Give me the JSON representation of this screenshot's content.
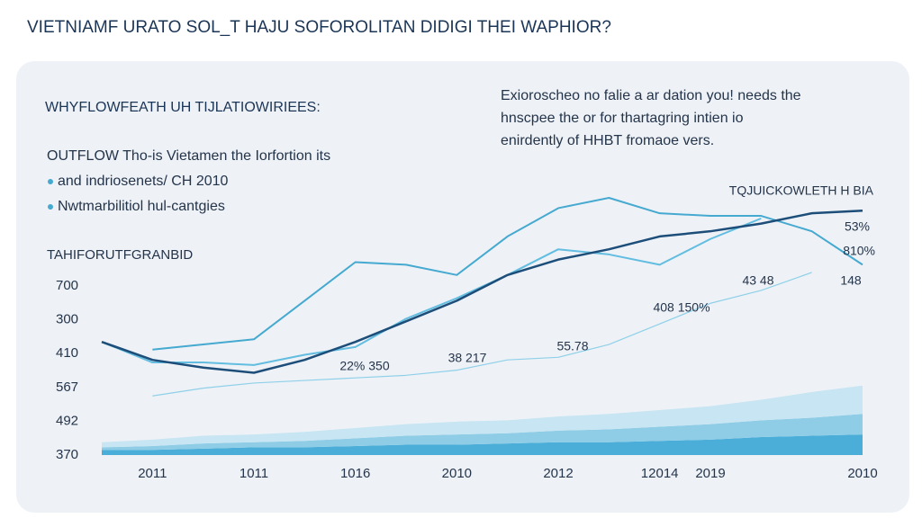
{
  "header": {
    "title": "VIETNIAMF URATO SOL_T HAJU SOFOROLITAN DIDIGI THEI WAPHIOR?"
  },
  "panel": {
    "heading": "WHYFLOWFEATH UH TIJLATIOWIRIEES:",
    "description": [
      "Exioroscheо no falie a ar dation you! needs the",
      "hnscpee the or for thartagring intien io",
      "enirdently of HHBT fromaoe vers."
    ],
    "intro": "OUTFLOW Tho-is Vietamen the Iorfortion its",
    "bullets": [
      "and indriosenets/ CH 2010",
      "Nwtmarbilitiol hul-cantgies"
    ],
    "axis_title": "TAHIFORUTFGRANBID"
  },
  "chart_data": {
    "type": "line",
    "categories": [
      null,
      "2011",
      null,
      "1011",
      null,
      "1016",
      null,
      "2010",
      null,
      "2012",
      null,
      "12014",
      "2019",
      null,
      null,
      "2010"
    ],
    "y_labels": [
      "700",
      "300",
      "410",
      "567",
      "492",
      "370"
    ],
    "ylim": [
      0,
      100
    ],
    "series": [
      {
        "kind": "area",
        "color": "#4aaed8",
        "values": [
          2,
          2,
          2.5,
          3,
          3,
          3.5,
          4,
          4,
          4.5,
          5,
          5,
          5.5,
          6,
          7,
          7.5,
          8
        ]
      },
      {
        "kind": "area",
        "color": "#8fcde7",
        "values": [
          1,
          1.5,
          2,
          2,
          2.5,
          3,
          3.5,
          4,
          4,
          4.5,
          5,
          5.5,
          6,
          6.5,
          7,
          8
        ]
      },
      {
        "kind": "area",
        "color": "#c7e5f2",
        "values": [
          2,
          2.5,
          3,
          3,
          3.5,
          4,
          4.5,
          5,
          5,
          5.5,
          6,
          6.5,
          7,
          8,
          10,
          11
        ]
      },
      {
        "kind": "line",
        "color": "#8fd0e8",
        "width": 1.2,
        "values": [
          null,
          23,
          26,
          28,
          29,
          30,
          31,
          33,
          37,
          38,
          43,
          51,
          59,
          64,
          71,
          null
        ]
      },
      {
        "kind": "line",
        "color": "#62bde0",
        "width": 2,
        "values": [
          44,
          36,
          36,
          35,
          39,
          42,
          53,
          61,
          70,
          80,
          78,
          74,
          84,
          92,
          null,
          null
        ]
      },
      {
        "kind": "line",
        "color": "#45a9d0",
        "width": 2,
        "values": [
          null,
          41,
          43,
          45,
          60,
          75,
          74,
          70,
          85,
          96,
          100,
          94,
          93,
          93,
          87,
          74
        ]
      },
      {
        "kind": "line",
        "color": "#1d4e7a",
        "width": 2.5,
        "values": [
          44,
          37,
          34,
          32,
          37,
          44,
          52,
          60,
          70,
          76,
          80,
          85,
          87,
          90,
          94,
          95
        ]
      }
    ],
    "annotations": [
      "22% 350",
      "38 217",
      "55.78",
      "408 150%",
      "43 48",
      "148",
      "53%",
      "810%",
      "TQJUICKOWLETH H BIA"
    ]
  }
}
